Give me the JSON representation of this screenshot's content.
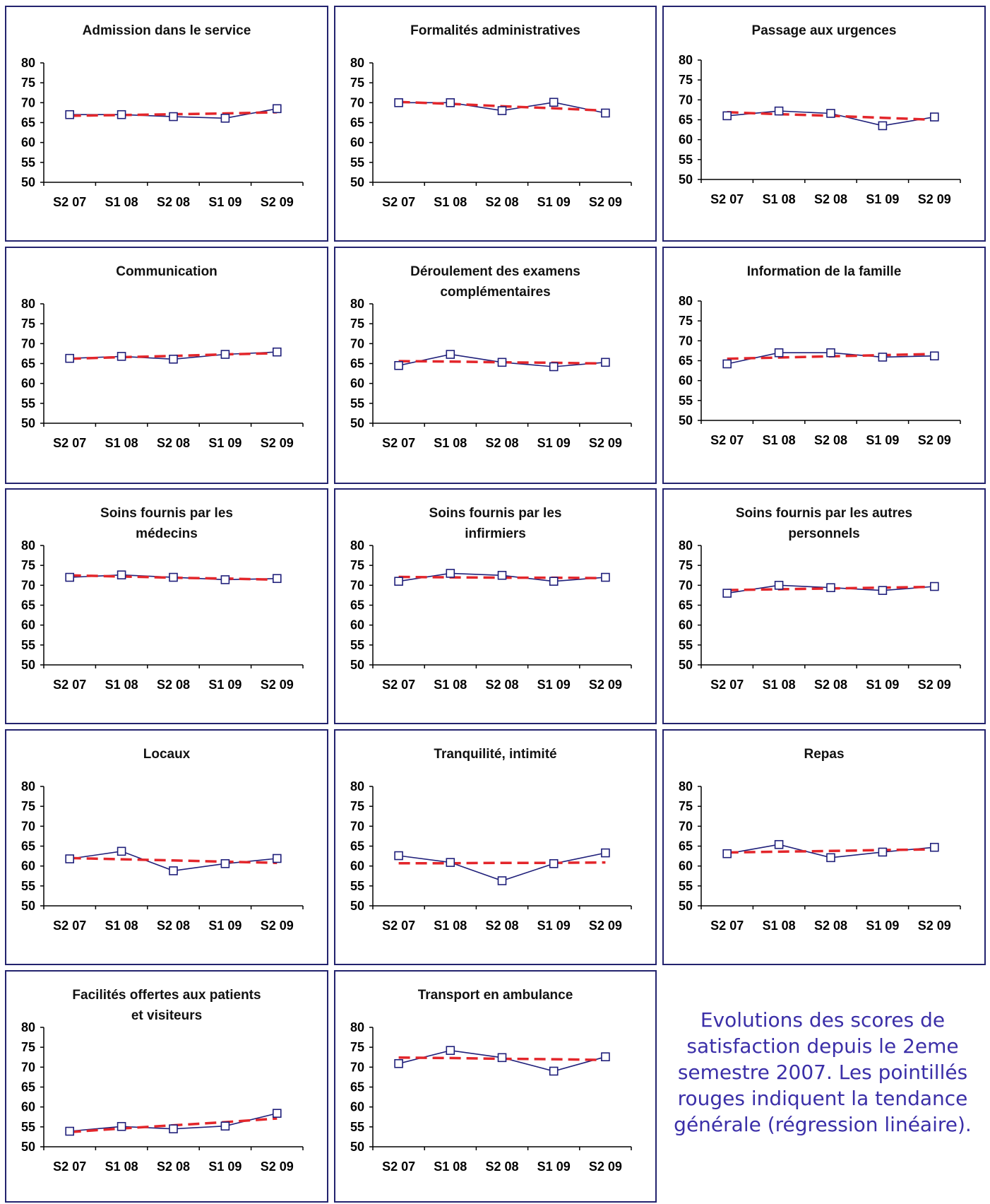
{
  "styles": {
    "border_color": "#23236e",
    "series_color": "#1f1f7a",
    "trend_color": "#e3262b",
    "caption_color": "#3b2fa8"
  },
  "caption": "Evolutions des scores de satisfaction depuis le 2eme semestre 2007. Les pointillés rouges indiquent la tendance générale (régression linéaire).",
  "chart_data": [
    {
      "type": "line",
      "title": [
        "Admission dans le service"
      ],
      "categories": [
        "S2 07",
        "S1 08",
        "S2 08",
        "S1 09",
        "S2 09"
      ],
      "ylim": [
        50,
        80
      ],
      "yticks": [
        50,
        55,
        60,
        65,
        70,
        75,
        80
      ],
      "series": [
        {
          "values": [
            67.0,
            67.0,
            66.5,
            66.1,
            68.5
          ]
        }
      ],
      "trend": [
        66.7,
        66.9,
        67.1,
        67.3,
        67.6
      ]
    },
    {
      "type": "line",
      "title": [
        "Formalités administratives"
      ],
      "categories": [
        "S2 07",
        "S1 08",
        "S2 08",
        "S1 09",
        "S2 09"
      ],
      "ylim": [
        50,
        80
      ],
      "yticks": [
        50,
        55,
        60,
        65,
        70,
        75,
        80
      ],
      "series": [
        {
          "values": [
            70.0,
            70.0,
            68.0,
            70.1,
            67.4
          ]
        }
      ],
      "trend": [
        70.2,
        69.7,
        69.1,
        68.6,
        68.0
      ]
    },
    {
      "type": "line",
      "title": [
        "Passage aux urgences"
      ],
      "categories": [
        "S2 07",
        "S1 08",
        "S2 08",
        "S1 09",
        "S2 09"
      ],
      "ylim": [
        50,
        80
      ],
      "yticks": [
        50,
        55,
        60,
        65,
        70,
        75,
        80
      ],
      "series": [
        {
          "values": [
            66.0,
            67.2,
            66.6,
            63.5,
            65.7
          ]
        }
      ],
      "trend": [
        66.9,
        66.4,
        66.0,
        65.5,
        65.0
      ]
    },
    {
      "type": "line",
      "title": [
        "Communication"
      ],
      "categories": [
        "S2 07",
        "S1 08",
        "S2 08",
        "S1 09",
        "S2 09"
      ],
      "ylim": [
        50,
        80
      ],
      "yticks": [
        50,
        55,
        60,
        65,
        70,
        75,
        80
      ],
      "series": [
        {
          "values": [
            66.3,
            66.8,
            66.1,
            67.3,
            67.9
          ]
        }
      ],
      "trend": [
        66.2,
        66.6,
        66.9,
        67.3,
        67.6
      ]
    },
    {
      "type": "line",
      "title": [
        "Déroulement des examens",
        "complémentaires"
      ],
      "categories": [
        "S2 07",
        "S1 08",
        "S2 08",
        "S1 09",
        "S2 09"
      ],
      "ylim": [
        50,
        80
      ],
      "yticks": [
        50,
        55,
        60,
        65,
        70,
        75,
        80
      ],
      "series": [
        {
          "values": [
            64.5,
            67.3,
            65.3,
            64.2,
            65.3
          ]
        }
      ],
      "trend": [
        65.6,
        65.5,
        65.3,
        65.2,
        65.0
      ]
    },
    {
      "type": "line",
      "title": [
        "Information de la famille"
      ],
      "categories": [
        "S2 07",
        "S1 08",
        "S2 08",
        "S1 09",
        "S2 09"
      ],
      "ylim": [
        50,
        80
      ],
      "yticks": [
        50,
        55,
        60,
        65,
        70,
        75,
        80
      ],
      "series": [
        {
          "values": [
            64.2,
            67.0,
            67.0,
            65.9,
            66.2
          ]
        }
      ],
      "trend": [
        65.5,
        65.8,
        66.1,
        66.4,
        66.7
      ]
    },
    {
      "type": "line",
      "title": [
        "Soins fournis par les",
        "médecins"
      ],
      "categories": [
        "S2 07",
        "S1 08",
        "S2 08",
        "S1 09",
        "S2 09"
      ],
      "ylim": [
        50,
        80
      ],
      "yticks": [
        50,
        55,
        60,
        65,
        70,
        75,
        80
      ],
      "series": [
        {
          "values": [
            72.0,
            72.6,
            72.0,
            71.4,
            71.7
          ]
        }
      ],
      "trend": [
        72.5,
        72.2,
        71.9,
        71.7,
        71.4
      ]
    },
    {
      "type": "line",
      "title": [
        "Soins fournis par les",
        "infirmiers"
      ],
      "categories": [
        "S2 07",
        "S1 08",
        "S2 08",
        "S1 09",
        "S2 09"
      ],
      "ylim": [
        50,
        80
      ],
      "yticks": [
        50,
        55,
        60,
        65,
        70,
        75,
        80
      ],
      "series": [
        {
          "values": [
            71.0,
            73.0,
            72.5,
            71.0,
            72.0
          ]
        }
      ],
      "trend": [
        72.1,
        72.0,
        71.9,
        71.9,
        71.8
      ]
    },
    {
      "type": "line",
      "title": [
        "Soins fournis par les autres",
        "personnels"
      ],
      "categories": [
        "S2 07",
        "S1 08",
        "S2 08",
        "S1 09",
        "S2 09"
      ],
      "ylim": [
        50,
        80
      ],
      "yticks": [
        50,
        55,
        60,
        65,
        70,
        75,
        80
      ],
      "series": [
        {
          "values": [
            68.0,
            70.0,
            69.4,
            68.7,
            69.7
          ]
        }
      ],
      "trend": [
        68.8,
        69.0,
        69.2,
        69.4,
        69.6
      ]
    },
    {
      "type": "line",
      "title": [
        "Locaux"
      ],
      "categories": [
        "S2 07",
        "S1 08",
        "S2 08",
        "S1 09",
        "S2 09"
      ],
      "ylim": [
        50,
        80
      ],
      "yticks": [
        50,
        55,
        60,
        65,
        70,
        75,
        80
      ],
      "series": [
        {
          "values": [
            61.8,
            63.7,
            58.8,
            60.6,
            61.9
          ]
        }
      ],
      "trend": [
        62.0,
        61.7,
        61.4,
        61.1,
        60.8
      ]
    },
    {
      "type": "line",
      "title": [
        "Tranquilité, intimité"
      ],
      "categories": [
        "S2 07",
        "S1 08",
        "S2 08",
        "S1 09",
        "S2 09"
      ],
      "ylim": [
        50,
        80
      ],
      "yticks": [
        50,
        55,
        60,
        65,
        70,
        75,
        80
      ],
      "series": [
        {
          "values": [
            62.6,
            60.9,
            56.3,
            60.6,
            63.3
          ]
        }
      ],
      "trend": [
        60.7,
        60.7,
        60.8,
        60.8,
        60.9
      ]
    },
    {
      "type": "line",
      "title": [
        "Repas"
      ],
      "categories": [
        "S2 07",
        "S1 08",
        "S2 08",
        "S1 09",
        "S2 09"
      ],
      "ylim": [
        50,
        80
      ],
      "yticks": [
        50,
        55,
        60,
        65,
        70,
        75,
        80
      ],
      "series": [
        {
          "values": [
            63.1,
            65.4,
            62.1,
            63.5,
            64.7
          ]
        }
      ],
      "trend": [
        63.4,
        63.6,
        63.8,
        64.0,
        64.2
      ]
    },
    {
      "type": "line",
      "title": [
        "Facilités offertes aux patients",
        "et visiteurs"
      ],
      "categories": [
        "S2 07",
        "S1 08",
        "S2 08",
        "S1 09",
        "S2 09"
      ],
      "ylim": [
        50,
        80
      ],
      "yticks": [
        50,
        55,
        60,
        65,
        70,
        75,
        80
      ],
      "series": [
        {
          "values": [
            53.9,
            55.1,
            54.5,
            55.2,
            58.4
          ]
        }
      ],
      "trend": [
        53.7,
        54.6,
        55.4,
        56.2,
        57.1
      ]
    },
    {
      "type": "line",
      "title": [
        "Transport en ambulance"
      ],
      "categories": [
        "S2 07",
        "S1 08",
        "S2 08",
        "S1 09",
        "S2 09"
      ],
      "ylim": [
        50,
        80
      ],
      "yticks": [
        50,
        55,
        60,
        65,
        70,
        75,
        80
      ],
      "series": [
        {
          "values": [
            70.9,
            74.2,
            72.4,
            69.0,
            72.6
          ]
        }
      ],
      "trend": [
        72.4,
        72.3,
        72.1,
        72.0,
        71.8
      ]
    }
  ]
}
